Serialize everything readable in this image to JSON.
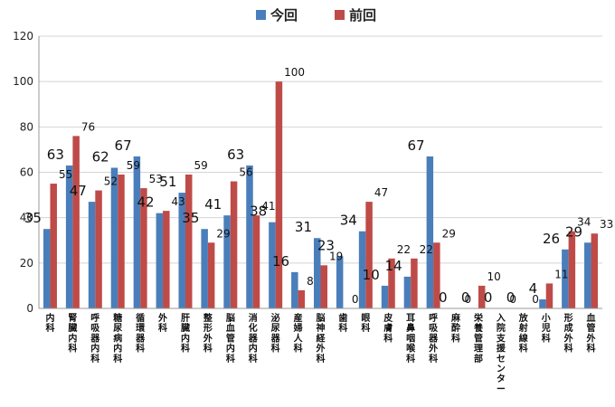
{
  "chart_data": {
    "type": "bar",
    "ylim": [
      0,
      120
    ],
    "yticks": [
      0,
      20,
      40,
      60,
      80,
      100,
      120
    ],
    "grid": true,
    "legend_position": "top-center",
    "categories": [
      "内科",
      "腎臓内科",
      "呼吸器内科",
      "糖尿病内科",
      "循環器科",
      "外科",
      "肝臓内科",
      "整形外科",
      "脳血管内科",
      "消化器内科",
      "泌尿器科",
      "産婦人科",
      "脳神経外科",
      "歯科",
      "眼科",
      "皮膚科",
      "耳鼻咽喉科",
      "呼吸器外科",
      "麻酔科",
      "栄養管理部",
      "入院支援センター",
      "放射線科",
      "小児科",
      "形成外科",
      "血管外科"
    ],
    "series": [
      {
        "name": "今回",
        "color": "#4a7ebb",
        "values": [
          35,
          63,
          47,
          62,
          67,
          42,
          51,
          35,
          41,
          63,
          38,
          16,
          31,
          23,
          34,
          10,
          14,
          67,
          0,
          0,
          0,
          0,
          4,
          26,
          29
        ]
      },
      {
        "name": "前回",
        "color": "#be4b48",
        "values": [
          55,
          76,
          52,
          59,
          53,
          43,
          59,
          29,
          56,
          41,
          100,
          8,
          19,
          0,
          47,
          22,
          22,
          29,
          0,
          10,
          0,
          0,
          11,
          34,
          33
        ]
      }
    ]
  }
}
